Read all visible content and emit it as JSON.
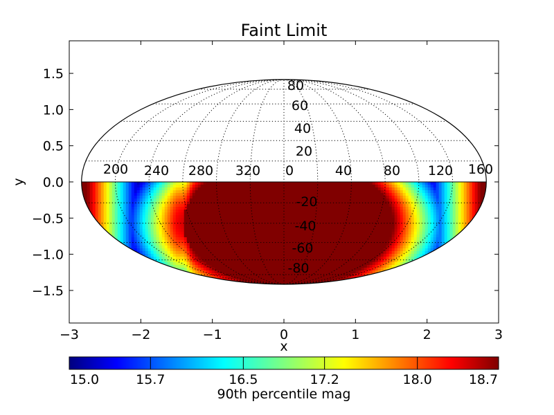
{
  "chart_data": {
    "type": "heatmap",
    "projection": "Mollweide (Hammer-style all-sky)",
    "title": "Faint Limit",
    "xlabel": "x",
    "ylabel": "y",
    "xlim": [
      -3,
      3
    ],
    "ylim": [
      -1.95,
      1.95
    ],
    "x_ticks": [
      "−3",
      "−2",
      "−1",
      "0",
      "1",
      "2",
      "3"
    ],
    "x_tick_values": [
      -3,
      -2,
      -1,
      0,
      1,
      2,
      3
    ],
    "y_ticks": [
      "−1.5",
      "−1.0",
      "−0.5",
      "0.0",
      "0.5",
      "1.0",
      "1.5"
    ],
    "y_tick_values": [
      -1.5,
      -1.0,
      -0.5,
      0.0,
      0.5,
      1.0,
      1.5
    ],
    "longitude_labels": [
      "200",
      "240",
      "280",
      "320",
      "0",
      "40",
      "80",
      "120",
      "160"
    ],
    "longitude_label_values": [
      200,
      240,
      280,
      320,
      0,
      40,
      80,
      120,
      160
    ],
    "latitude_labels": [
      "80",
      "60",
      "40",
      "20",
      "-20",
      "-40",
      "-60",
      "-80"
    ],
    "latitude_label_values": [
      80,
      60,
      40,
      20,
      -20,
      -40,
      -60,
      -80
    ],
    "data_coverage": "southern hemisphere only (y < 0)",
    "colorbar": {
      "label": "90th percentile mag",
      "colormap": "jet",
      "ticks": [
        "15.0",
        "15.7",
        "16.5",
        "17.2",
        "18.0",
        "18.7"
      ],
      "tick_values": [
        15.0,
        15.7,
        16.5,
        17.2,
        18.0,
        18.7
      ],
      "range": [
        15.0,
        18.7
      ]
    },
    "grid": true,
    "grid_style": "dotted"
  }
}
